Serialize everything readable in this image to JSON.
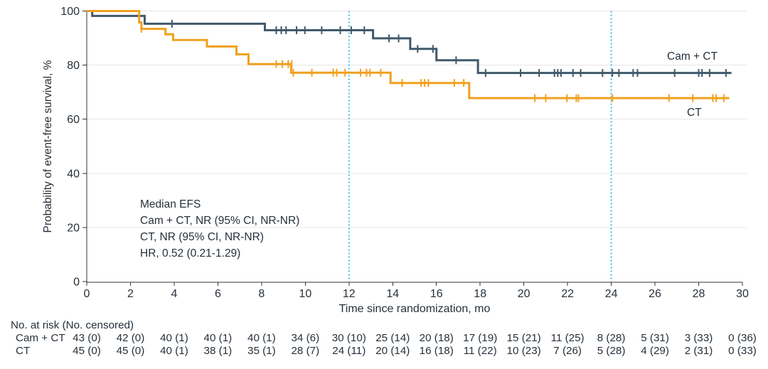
{
  "chart_data": {
    "type": "line",
    "subtype": "kaplan-meier-step",
    "title": "",
    "xlabel": "Time since randomization, mo",
    "ylabel": "Probability of event-free survival, %",
    "xlim": [
      0,
      30
    ],
    "ylim": [
      0,
      100
    ],
    "xticks": [
      0,
      2,
      4,
      6,
      8,
      10,
      12,
      14,
      16,
      18,
      20,
      22,
      24,
      26,
      28,
      30
    ],
    "yticks": [
      0,
      20,
      40,
      60,
      80,
      100
    ],
    "grid": "horizontal",
    "reference_lines_x": [
      12,
      24
    ],
    "colors": {
      "cam_ct": "#40596B",
      "ct": "#F0A01E",
      "reference_line": "#3FBCE8",
      "axis": "#333333",
      "grid": "#E7E7E7",
      "text": "#26303A"
    },
    "series": [
      {
        "name": "Cam+CT",
        "label": "Cam + CT",
        "color": "#40596B",
        "steps": [
          [
            0,
            100
          ],
          [
            0.25,
            98.2
          ],
          [
            2.65,
            95.3
          ],
          [
            8.15,
            92.9
          ],
          [
            13.1,
            89.9
          ],
          [
            14.8,
            86.0
          ],
          [
            16.0,
            81.8
          ],
          [
            17.9,
            77.1
          ]
        ],
        "end_time": 29.5,
        "censor_ticks": [
          [
            3.9,
            95.3
          ],
          [
            8.67,
            92.9
          ],
          [
            8.9,
            92.9
          ],
          [
            9.12,
            92.9
          ],
          [
            9.6,
            92.9
          ],
          [
            9.98,
            92.9
          ],
          [
            10.75,
            92.9
          ],
          [
            11.6,
            92.9
          ],
          [
            12.1,
            92.9
          ],
          [
            12.7,
            92.9
          ],
          [
            13.83,
            89.9
          ],
          [
            14.27,
            89.9
          ],
          [
            15.14,
            86.0
          ],
          [
            15.84,
            86.0
          ],
          [
            16.9,
            81.8
          ],
          [
            18.25,
            77.1
          ],
          [
            19.85,
            77.1
          ],
          [
            20.7,
            77.1
          ],
          [
            21.4,
            77.1
          ],
          [
            21.55,
            77.1
          ],
          [
            21.7,
            77.1
          ],
          [
            22.25,
            77.1
          ],
          [
            22.6,
            77.1
          ],
          [
            23.6,
            77.1
          ],
          [
            24.05,
            77.1
          ],
          [
            24.35,
            77.1
          ],
          [
            25.0,
            77.1
          ],
          [
            25.2,
            77.1
          ],
          [
            26.9,
            77.1
          ],
          [
            28.0,
            77.1
          ],
          [
            28.15,
            77.1
          ],
          [
            28.5,
            77.1
          ],
          [
            29.25,
            77.1
          ]
        ]
      },
      {
        "name": "CT",
        "label": "CT",
        "color": "#F0A01E",
        "steps": [
          [
            0,
            100
          ],
          [
            2.4,
            95.8
          ],
          [
            2.5,
            93.4
          ],
          [
            3.6,
            91.4
          ],
          [
            3.95,
            89.3
          ],
          [
            5.5,
            86.9
          ],
          [
            6.85,
            84.0
          ],
          [
            7.4,
            80.4
          ],
          [
            9.35,
            77.2
          ],
          [
            13.9,
            73.4
          ],
          [
            17.5,
            67.8
          ]
        ],
        "end_time": 29.4,
        "censor_ticks": [
          [
            2.5,
            93.4
          ],
          [
            8.67,
            80.4
          ],
          [
            8.95,
            80.4
          ],
          [
            9.22,
            80.4
          ],
          [
            9.38,
            80.4
          ],
          [
            9.45,
            77.2
          ],
          [
            10.3,
            77.2
          ],
          [
            11.28,
            77.2
          ],
          [
            11.44,
            77.2
          ],
          [
            11.82,
            77.2
          ],
          [
            12.53,
            77.2
          ],
          [
            12.8,
            77.2
          ],
          [
            12.96,
            77.2
          ],
          [
            13.45,
            77.2
          ],
          [
            14.43,
            73.4
          ],
          [
            15.3,
            73.4
          ],
          [
            15.46,
            73.4
          ],
          [
            15.63,
            73.4
          ],
          [
            16.82,
            73.4
          ],
          [
            17.25,
            73.4
          ],
          [
            20.5,
            67.8
          ],
          [
            21.0,
            67.8
          ],
          [
            21.97,
            67.8
          ],
          [
            22.4,
            67.8
          ],
          [
            22.5,
            67.8
          ],
          [
            24.05,
            67.8
          ],
          [
            26.64,
            67.8
          ],
          [
            27.73,
            67.8
          ],
          [
            28.65,
            67.8
          ],
          [
            28.8,
            67.8
          ],
          [
            29.15,
            67.8
          ]
        ]
      }
    ],
    "annotation": {
      "lines": [
        "Median EFS",
        "Cam + CT, NR (95% CI, NR-NR)",
        "CT, NR (95% CI, NR-NR)",
        "HR, 0.52 (0.21-1.29)"
      ]
    }
  },
  "risk_table": {
    "header": "No. at risk (No. censored)",
    "times": [
      0,
      2,
      4,
      6,
      8,
      10,
      12,
      14,
      16,
      18,
      20,
      22,
      24,
      26,
      28,
      30
    ],
    "rows": [
      {
        "label": "Cam + CT",
        "values": [
          "43 (0)",
          "42 (0)",
          "40 (1)",
          "40 (1)",
          "40 (1)",
          "34 (6)",
          "30 (10)",
          "25 (14)",
          "20 (18)",
          "17 (19)",
          "15 (21)",
          "11 (25)",
          "8 (28)",
          "5 (31)",
          "3 (33)",
          "0 (36)"
        ]
      },
      {
        "label": "CT",
        "values": [
          "45 (0)",
          "45 (0)",
          "40 (1)",
          "38 (1)",
          "35 (1)",
          "28 (7)",
          "24 (11)",
          "20 (14)",
          "16 (18)",
          "11 (22)",
          "10 (23)",
          "7 (26)",
          "5 (28)",
          "4 (29)",
          "2 (31)",
          "0 (33)"
        ]
      }
    ]
  }
}
